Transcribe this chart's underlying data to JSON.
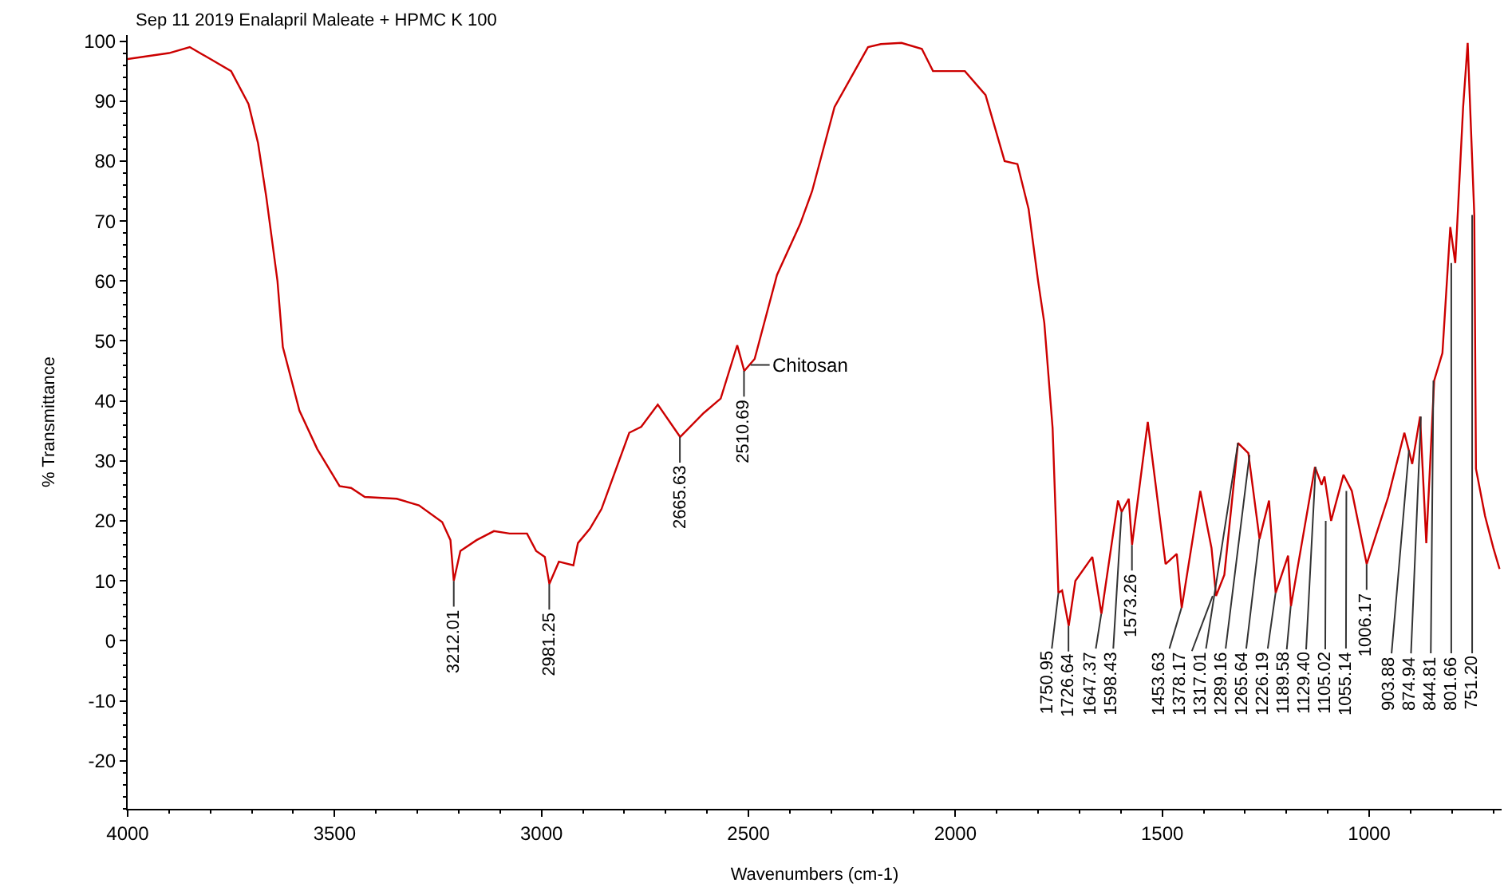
{
  "chart_data": {
    "type": "line",
    "title": "Sep 11 2019 Enalapril Maleate + HPMC K 100",
    "xlabel": "Wavenumbers (cm-1)",
    "ylabel": "% Transmittance",
    "xlim": [
      4000,
      680
    ],
    "xticks": [
      4000,
      3500,
      3000,
      2500,
      2000,
      1500,
      1000
    ],
    "ylim": [
      -28,
      101
    ],
    "yticks": [
      -20,
      -10,
      0,
      10,
      20,
      30,
      40,
      50,
      60,
      70,
      80,
      90,
      100
    ],
    "marker": "none",
    "line_style": "solid",
    "series": [
      {
        "color": "#cc0000",
        "x": [
          4000,
          3900,
          3850,
          3800,
          3750,
          3708,
          3685,
          3665,
          3638,
          3625,
          3585,
          3542,
          3488,
          3460,
          3427,
          3350,
          3296,
          3240,
          3220,
          3212,
          3196,
          3157,
          3115,
          3077,
          3035,
          3013,
          2992,
          2981,
          2958,
          2923,
          2912,
          2883,
          2855,
          2788,
          2759,
          2719,
          2665,
          2608,
          2567,
          2527,
          2510,
          2485,
          2431,
          2375,
          2346,
          2292,
          2211,
          2180,
          2130,
          2081,
          2054,
          1977,
          1927,
          1881,
          1850,
          1823,
          1800,
          1785,
          1765,
          1751,
          1742,
          1726,
          1710,
          1669,
          1647,
          1607,
          1598,
          1581,
          1573,
          1535,
          1492,
          1465,
          1453,
          1408,
          1381,
          1370,
          1350,
          1317,
          1292,
          1265,
          1242,
          1226,
          1196,
          1189,
          1131,
          1115,
          1108,
          1092,
          1062,
          1042,
          1006,
          954,
          915,
          896,
          877,
          862,
          843,
          823,
          804,
          792,
          773,
          762,
          746,
          742,
          720,
          700,
          685
        ],
        "values": [
          97,
          98,
          99,
          97,
          95,
          89.5,
          83,
          74,
          60,
          49,
          38.4,
          32,
          25.8,
          25.5,
          24,
          23.7,
          22.6,
          19.8,
          16.8,
          10,
          15,
          16.8,
          18.3,
          17.9,
          17.9,
          15,
          14,
          9.5,
          13.2,
          12.6,
          16.3,
          18.7,
          22,
          34.7,
          35.7,
          39.4,
          34,
          38,
          40.4,
          49.3,
          45,
          47,
          61,
          69.5,
          75,
          89,
          99,
          99.5,
          99.7,
          98.7,
          95,
          95,
          91,
          80,
          79.5,
          72,
          60,
          53,
          35.5,
          8,
          8.4,
          2.5,
          10,
          14,
          4.5,
          23.4,
          21.5,
          23.7,
          16,
          36.5,
          12.8,
          14.5,
          5.5,
          25,
          15.5,
          7.5,
          11,
          33,
          31.3,
          17,
          23.4,
          8,
          14.2,
          5.8,
          29,
          26,
          27.4,
          20,
          27.7,
          25,
          12.8,
          24,
          34.7,
          29.5,
          37.4,
          16.3,
          43.4,
          48,
          69,
          63,
          89,
          99.7,
          71,
          28.7,
          20.8,
          15.5,
          12
        ]
      }
    ],
    "annotations": [
      {
        "text": "3212.01",
        "x": 3212.01,
        "y": 10
      },
      {
        "text": "2981.25",
        "x": 2981.25,
        "y": 9.5
      },
      {
        "text": "2665.63",
        "x": 2665.63,
        "y": 34
      },
      {
        "text": "2510.69",
        "x": 2510.69,
        "y": 45
      },
      {
        "text": "Chitosan",
        "x": 2495,
        "y": 46
      },
      {
        "text": "1750.95",
        "x": 1750.95,
        "y": 8
      },
      {
        "text": "1726.64",
        "x": 1726.64,
        "y": 2.5
      },
      {
        "text": "1647.37",
        "x": 1647.37,
        "y": 4.5
      },
      {
        "text": "1598.43",
        "x": 1598.43,
        "y": 21.5
      },
      {
        "text": "1573.26",
        "x": 1573.26,
        "y": 16
      },
      {
        "text": "1453.63",
        "x": 1453.63,
        "y": 5.5
      },
      {
        "text": "1378.17",
        "x": 1378.17,
        "y": 7.5
      },
      {
        "text": "1317.01",
        "x": 1317.01,
        "y": 33
      },
      {
        "text": "1289.16",
        "x": 1289.16,
        "y": 31
      },
      {
        "text": "1265.64",
        "x": 1265.64,
        "y": 17
      },
      {
        "text": "1226.19",
        "x": 1226.19,
        "y": 8
      },
      {
        "text": "1189.58",
        "x": 1189.58,
        "y": 5.8
      },
      {
        "text": "1129.40",
        "x": 1129.4,
        "y": 29
      },
      {
        "text": "1105.02",
        "x": 1105.02,
        "y": 20
      },
      {
        "text": "1055.14",
        "x": 1055.14,
        "y": 25
      },
      {
        "text": "1006.17",
        "x": 1006.17,
        "y": 12.8
      },
      {
        "text": "903.88",
        "x": 903.88,
        "y": 31.8
      },
      {
        "text": "874.94",
        "x": 874.94,
        "y": 37.4
      },
      {
        "text": "844.81",
        "x": 844.81,
        "y": 43.4
      },
      {
        "text": "801.66",
        "x": 801.66,
        "y": 63
      },
      {
        "text": "751.20",
        "x": 751.2,
        "y": 71
      }
    ]
  }
}
